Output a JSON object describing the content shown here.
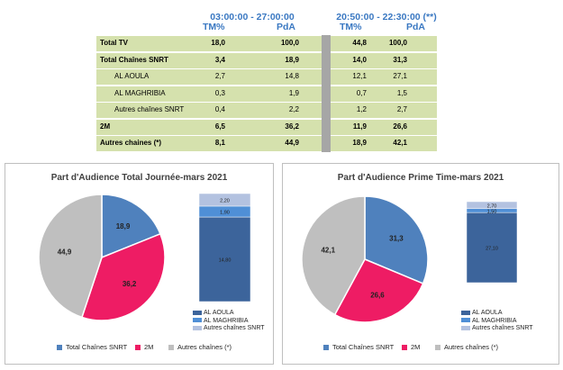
{
  "table": {
    "header_period_1": "03:00:00 - 27:00:00",
    "header_period_2": "20:50:00 - 22:30:00 (**)",
    "col_tm": "TM%",
    "col_pda": "PdA",
    "rows": [
      {
        "label": "Total  TV",
        "tm1": "18,0",
        "pda1": "100,0",
        "tm2": "44,8",
        "pda2": "100,0"
      },
      {
        "label": "Total Chaînes SNRT",
        "tm1": "3,4",
        "pda1": "18,9",
        "tm2": "14,0",
        "pda2": "31,3"
      },
      {
        "label": "AL AOULA",
        "tm1": "2,7",
        "pda1": "14,8",
        "tm2": "12,1",
        "pda2": "27,1"
      },
      {
        "label": "AL MAGHRIBIA",
        "tm1": "0,3",
        "pda1": "1,9",
        "tm2": "0,7",
        "pda2": "1,5"
      },
      {
        "label": "Autres chaînes SNRT",
        "tm1": "0,4",
        "pda1": "2,2",
        "tm2": "1,2",
        "pda2": "2,7"
      },
      {
        "label": "2M",
        "tm1": "6,5",
        "pda1": "36,2",
        "tm2": "11,9",
        "pda2": "26,6"
      },
      {
        "label": "Autres chaines (*)",
        "tm1": "8,1",
        "pda1": "44,9",
        "tm2": "18,9",
        "pda2": "42,1"
      }
    ]
  },
  "chart_data": [
    {
      "type": "pie",
      "title": "Part d'Audience Total Journée-mars 2021",
      "categories": [
        "Total Chaînes SNRT",
        "2M",
        "Autres chaînes (*)"
      ],
      "values": [
        18.9,
        36.2,
        44.9
      ],
      "labels": [
        "18,9",
        "36,2",
        "44,9"
      ],
      "colors": [
        "#4f81bd",
        "#ee1c64",
        "#bfbfbf"
      ],
      "legend_position": "bottom",
      "stacked_bar": {
        "type": "bar",
        "categories": [
          "AL AOULA",
          "AL MAGHRIBIA",
          "Autres chaînes SNRT"
        ],
        "values": [
          14.8,
          1.9,
          2.2
        ],
        "labels": [
          "14,80",
          "1,90",
          "2,20"
        ],
        "colors": [
          "#3c649b",
          "#4f8fd6",
          "#b3c2e0"
        ],
        "legend_position": "bottom-right"
      }
    },
    {
      "type": "pie",
      "title": "Part d'Audience Prime Time-mars 2021",
      "categories": [
        "Total Chaînes SNRT",
        "2M",
        "Autres chaînes (*)"
      ],
      "values": [
        31.3,
        26.6,
        42.1
      ],
      "labels": [
        "31,3",
        "26,6",
        "42,1"
      ],
      "colors": [
        "#4f81bd",
        "#ee1c64",
        "#bfbfbf"
      ],
      "legend_position": "bottom",
      "stacked_bar": {
        "type": "bar",
        "categories": [
          "AL AOULA",
          "AL MAGHRIBIA",
          "Autres chaînes SNRT"
        ],
        "values": [
          27.1,
          1.5,
          2.7
        ],
        "labels": [
          "27,10",
          "1,50",
          "2,70"
        ],
        "colors": [
          "#3c649b",
          "#4f8fd6",
          "#b3c2e0"
        ],
        "legend_position": "bottom-right"
      }
    }
  ]
}
